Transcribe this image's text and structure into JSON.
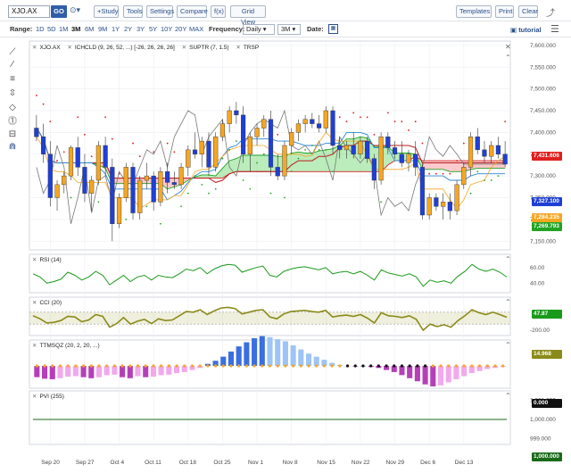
{
  "toolbar": {
    "symbol_value": "XJO.AX",
    "go_label": "GO",
    "link_icon": "link-icon",
    "buttons": [
      "+Study",
      "Tools",
      "Settings",
      "Compare",
      "f(x)",
      "Grid View"
    ],
    "right_buttons": [
      "Templates",
      "Print",
      "Clear"
    ],
    "share_icon": "share-icon"
  },
  "rangebar": {
    "range_label": "Range:",
    "ranges": [
      "1D",
      "5D",
      "1M",
      "3M",
      "6M",
      "9M",
      "1Y",
      "2Y",
      "3Y",
      "5Y",
      "10Y",
      "20Y",
      "MAX"
    ],
    "active_range": "3M",
    "frequency_label": "Frequency:",
    "frequency_value": "Daily",
    "period_value": "3M",
    "date_label": "Date:",
    "calendar_icon": "calendar-icon",
    "tutorial_label": "tutorial",
    "menu_icon": "hamburger-menu-icon"
  },
  "drawing_tools": [
    "trendline-icon",
    "line-icon",
    "fibonacci-icon",
    "arrows-icon",
    "shapes-icon",
    "annotation-icon",
    "measure-icon",
    "magnet-icon"
  ],
  "legends": {
    "main": [
      "XJO.AX",
      "ICHCLD (9, 26, 52, ...) [-26, 26, 26, 26]",
      "SUPTR (7, 1.5)",
      "TRSP"
    ],
    "rsi": "RSI (14)",
    "cci": "CCI (20)",
    "ttm": "TTMSQZ (20, 2, 20, ...)",
    "pvi": "PVI (255)"
  },
  "colors": {
    "up": "#f5a623",
    "down": "#1f3fd6",
    "cloud_green": "#22a322",
    "cloud_red": "#d92020",
    "supertrend_red": "#e02020",
    "rsi": "#1a9a1a",
    "cci": "#8a8a1a",
    "pvi": "#1a6a1a"
  },
  "chart_data": [
    {
      "type": "candlestick",
      "title": "",
      "x_labels": [
        "Sep 20",
        "Sep 27",
        "Oct 4",
        "Oct 11",
        "Oct 18",
        "Oct 25",
        "Nov 1",
        "Nov 8",
        "Nov 15",
        "Nov 22",
        "Nov 29",
        "Dec 6",
        "Dec 13"
      ],
      "y_ticks": [
        7600,
        7550,
        7500,
        7450,
        7400,
        7350,
        7300,
        7250,
        7200,
        7150
      ],
      "ylim": [
        7130,
        7610
      ],
      "candles": [
        [
          7410,
          7440,
          7380,
          7390
        ],
        [
          7390,
          7420,
          7330,
          7350
        ],
        [
          7350,
          7380,
          7230,
          7250
        ],
        [
          7250,
          7290,
          7220,
          7280
        ],
        [
          7280,
          7310,
          7260,
          7300
        ],
        [
          7300,
          7370,
          7290,
          7365
        ],
        [
          7365,
          7390,
          7300,
          7320
        ],
        [
          7320,
          7350,
          7240,
          7260
        ],
        [
          7260,
          7300,
          7220,
          7290
        ],
        [
          7290,
          7380,
          7280,
          7370
        ],
        [
          7370,
          7390,
          7300,
          7320
        ],
        [
          7320,
          7340,
          7150,
          7190
        ],
        [
          7190,
          7260,
          7180,
          7250
        ],
        [
          7250,
          7330,
          7240,
          7320
        ],
        [
          7320,
          7330,
          7200,
          7215
        ],
        [
          7215,
          7300,
          7200,
          7290
        ],
        [
          7290,
          7330,
          7270,
          7300
        ],
        [
          7300,
          7310,
          7220,
          7240
        ],
        [
          7240,
          7320,
          7230,
          7310
        ],
        [
          7310,
          7330,
          7260,
          7285
        ],
        [
          7285,
          7310,
          7270,
          7280
        ],
        [
          7280,
          7330,
          7270,
          7320
        ],
        [
          7320,
          7370,
          7300,
          7360
        ],
        [
          7360,
          7400,
          7340,
          7350
        ],
        [
          7350,
          7390,
          7320,
          7380
        ],
        [
          7380,
          7400,
          7300,
          7320
        ],
        [
          7320,
          7400,
          7310,
          7390
        ],
        [
          7390,
          7430,
          7380,
          7420
        ],
        [
          7420,
          7460,
          7400,
          7450
        ],
        [
          7450,
          7470,
          7420,
          7440
        ],
        [
          7440,
          7460,
          7330,
          7350
        ],
        [
          7350,
          7400,
          7310,
          7390
        ],
        [
          7390,
          7420,
          7370,
          7410
        ],
        [
          7410,
          7440,
          7390,
          7430
        ],
        [
          7430,
          7450,
          7300,
          7320
        ],
        [
          7320,
          7350,
          7290,
          7300
        ],
        [
          7300,
          7380,
          7290,
          7370
        ],
        [
          7370,
          7410,
          7350,
          7400
        ],
        [
          7400,
          7430,
          7380,
          7420
        ],
        [
          7420,
          7440,
          7400,
          7430
        ],
        [
          7430,
          7445,
          7410,
          7420
        ],
        [
          7420,
          7440,
          7400,
          7410
        ],
        [
          7410,
          7460,
          7400,
          7450
        ],
        [
          7450,
          7460,
          7350,
          7370
        ],
        [
          7370,
          7390,
          7340,
          7360
        ],
        [
          7360,
          7380,
          7340,
          7370
        ],
        [
          7370,
          7400,
          7340,
          7350
        ],
        [
          7350,
          7390,
          7340,
          7380
        ],
        [
          7380,
          7390,
          7330,
          7340
        ],
        [
          7340,
          7350,
          7270,
          7290
        ],
        [
          7290,
          7400,
          7280,
          7390
        ],
        [
          7390,
          7400,
          7350,
          7365
        ],
        [
          7365,
          7380,
          7340,
          7350
        ],
        [
          7350,
          7380,
          7320,
          7330
        ],
        [
          7330,
          7360,
          7310,
          7350
        ],
        [
          7350,
          7380,
          7300,
          7320
        ],
        [
          7320,
          7330,
          7200,
          7210
        ],
        [
          7210,
          7260,
          7200,
          7250
        ],
        [
          7250,
          7260,
          7220,
          7230
        ],
        [
          7230,
          7260,
          7200,
          7240
        ],
        [
          7240,
          7260,
          7200,
          7220
        ],
        [
          7220,
          7290,
          7210,
          7280
        ],
        [
          7280,
          7330,
          7270,
          7320
        ],
        [
          7320,
          7400,
          7300,
          7390
        ],
        [
          7390,
          7410,
          7350,
          7360
        ],
        [
          7360,
          7380,
          7330,
          7345
        ],
        [
          7345,
          7380,
          7330,
          7370
        ],
        [
          7370,
          7390,
          7340,
          7350
        ],
        [
          7350,
          7380,
          7320,
          7327
        ]
      ],
      "last_labels": [
        {
          "value": "7,431.606",
          "price": 7431.606,
          "color": "#e02020"
        },
        {
          "value": "7,327.100",
          "price": 7327.1,
          "color": "#1f3fd6"
        },
        {
          "value": "7,284.235",
          "price": 7290,
          "color": "#f5a623"
        },
        {
          "value": "7,269.793",
          "price": 7269.793,
          "color": "#22a322"
        }
      ]
    },
    {
      "type": "line",
      "title": "RSI (14)",
      "y_ticks": [
        60,
        40
      ],
      "ylim": [
        30,
        70
      ],
      "values": [
        52,
        48,
        40,
        42,
        45,
        54,
        50,
        44,
        48,
        55,
        50,
        38,
        44,
        50,
        42,
        48,
        50,
        44,
        50,
        48,
        47,
        52,
        58,
        56,
        60,
        52,
        58,
        62,
        64,
        63,
        54,
        57,
        60,
        62,
        50,
        48,
        55,
        58,
        60,
        61,
        59,
        57,
        60,
        52,
        54,
        55,
        52,
        55,
        50,
        44,
        57,
        53,
        51,
        49,
        52,
        48,
        36,
        44,
        41,
        43,
        40,
        49,
        55,
        64,
        58,
        55,
        58,
        54,
        47.87
      ],
      "last_label": "47.87"
    },
    {
      "type": "line",
      "title": "CCI (20)",
      "y_ticks": [
        -200
      ],
      "ylim": [
        -260,
        260
      ],
      "band": [
        -100,
        100
      ],
      "values": [
        40,
        -10,
        -80,
        -70,
        -40,
        30,
        20,
        -60,
        -30,
        60,
        30,
        -150,
        -90,
        10,
        -100,
        -50,
        -20,
        -90,
        -10,
        -40,
        -30,
        40,
        110,
        100,
        140,
        60,
        120,
        170,
        180,
        160,
        70,
        100,
        130,
        140,
        20,
        -10,
        70,
        110,
        120,
        130,
        110,
        100,
        130,
        20,
        40,
        50,
        30,
        60,
        0,
        -80,
        90,
        40,
        30,
        10,
        40,
        -20,
        -200,
        -100,
        -140,
        -110,
        -150,
        -40,
        40,
        140,
        90,
        60,
        100,
        60,
        14.968
      ],
      "last_label": "14.968"
    },
    {
      "type": "bar",
      "title": "TTMSQZ (20, 2, 20, ...)",
      "ylim": [
        -80,
        80
      ],
      "values": [
        -22,
        -25,
        -26,
        -24,
        -21,
        -20,
        -22,
        -24,
        -22,
        -18,
        -17,
        -22,
        -24,
        -20,
        -22,
        -21,
        -18,
        -17,
        -14,
        -12,
        -8,
        -4,
        4,
        10,
        18,
        28,
        38,
        46,
        54,
        58,
        56,
        52,
        48,
        40,
        32,
        24,
        18,
        12,
        6,
        2,
        0,
        -1,
        0,
        -2,
        -4,
        -8,
        -12,
        -18,
        -24,
        -30,
        -36,
        -40,
        -38,
        -32,
        -26,
        -20,
        -14,
        -10,
        -6,
        -4,
        -2
      ],
      "last_label": "0.000"
    },
    {
      "type": "line",
      "title": "PVI (255)",
      "y_ticks": [
        1001,
        1000,
        999
      ],
      "ylim": [
        998.8,
        1001.2
      ],
      "values": [
        1000,
        1000
      ],
      "last_label": "1,000.000"
    }
  ]
}
